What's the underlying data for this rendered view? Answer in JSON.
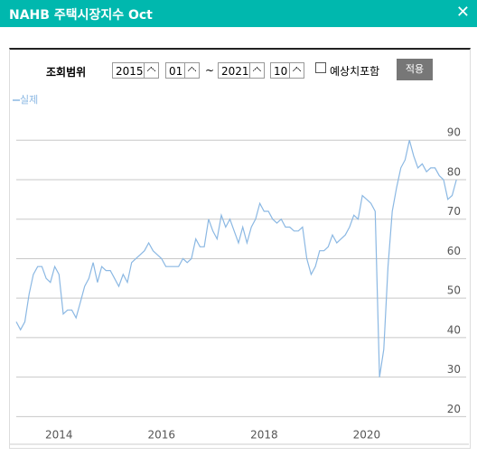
{
  "header": {
    "title": "NAHB 주택시장지수 Oct"
  },
  "controls": {
    "range_label": "조회범위",
    "start_year": "2015",
    "start_month": "01",
    "separator": "~",
    "end_year": "2021",
    "end_month": "10",
    "checkbox_label": "예상치포함",
    "apply_button": "적용"
  },
  "chart_data": {
    "type": "line",
    "categories": [
      null,
      null,
      null,
      null,
      null,
      null,
      null,
      null,
      null,
      null,
      "2014",
      null,
      null,
      null,
      null,
      null,
      null,
      null,
      null,
      null,
      null,
      null,
      null,
      null,
      null,
      null,
      null,
      null,
      null,
      null,
      null,
      null,
      null,
      null,
      "2016",
      null,
      null,
      null,
      null,
      null,
      null,
      null,
      null,
      null,
      null,
      null,
      null,
      null,
      null,
      null,
      null,
      null,
      null,
      null,
      null,
      null,
      null,
      null,
      "2018",
      null,
      null,
      null,
      null,
      null,
      null,
      null,
      null,
      null,
      null,
      null,
      null,
      null,
      null,
      null,
      null,
      null,
      null,
      null,
      null,
      null,
      null,
      null,
      "2020",
      null,
      null,
      null,
      null,
      null,
      null,
      null,
      null,
      null,
      null,
      null,
      null,
      null,
      null,
      null,
      null,
      null,
      null,
      null,
      null,
      null
    ],
    "series": [
      {
        "name": "실제",
        "color": "#8bb8e3",
        "values": [
          44,
          42,
          44,
          51,
          56,
          58,
          58,
          55,
          54,
          58,
          56,
          46,
          47,
          47,
          45,
          49,
          53,
          55,
          59,
          54,
          58,
          57,
          57,
          55,
          53,
          56,
          54,
          59,
          60,
          61,
          62,
          64,
          62,
          61,
          60,
          58,
          58,
          58,
          58,
          60,
          59,
          60,
          65,
          63,
          63,
          70,
          67,
          65,
          71,
          68,
          70,
          67,
          64,
          68,
          64,
          68,
          70,
          74,
          72,
          72,
          70,
          69,
          70,
          68,
          68,
          67,
          67,
          68,
          60,
          56,
          58,
          62,
          62,
          63,
          66,
          64,
          65,
          66,
          68,
          71,
          70,
          76,
          75,
          74,
          72,
          30,
          37,
          58,
          72,
          78,
          83,
          85,
          90,
          86,
          83,
          84,
          82,
          83,
          83,
          81,
          80,
          75,
          76,
          80
        ]
      }
    ],
    "ylim": [
      13,
      96
    ],
    "yticks": [
      20,
      30,
      40,
      50,
      60,
      70,
      80,
      90
    ],
    "grid": true
  }
}
